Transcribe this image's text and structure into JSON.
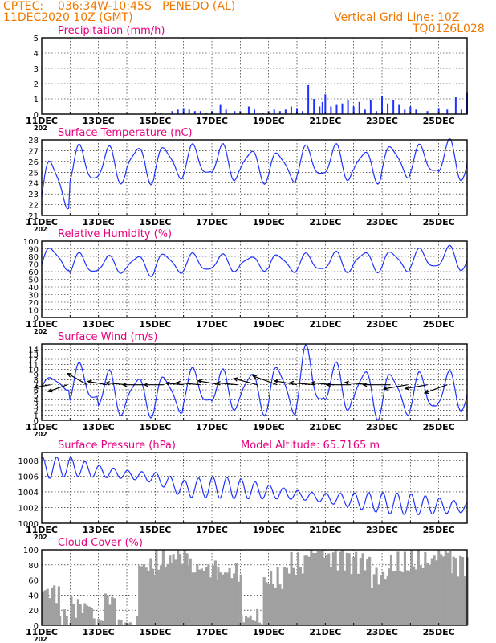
{
  "header": {
    "line1": "CPTEC:    036:34W-10:45S   PENEDO (AL)",
    "line2": "11DEC2020 10Z (GMT)",
    "right1": "Vertical Grid Line: 10Z",
    "right2": "TQ0126L028",
    "trunc_year": "202"
  },
  "x_ticks": [
    "11DEC",
    "13DEC",
    "15DEC",
    "17DEC",
    "19DEC",
    "21DEC",
    "23DEC",
    "25DEC"
  ],
  "chart_data": [
    {
      "type": "bar",
      "title": "Precipitation (mm/h)",
      "ylim": [
        0,
        5
      ],
      "yticks": [
        "0",
        "1",
        "2",
        "3",
        "4",
        "5"
      ],
      "x_unit": "days after 11DEC 10Z",
      "series": [
        {
          "x": [
            4.2,
            4.6,
            4.8,
            5.0,
            5.2,
            5.4,
            5.6,
            5.8,
            6.0,
            6.3,
            6.5,
            6.8,
            7.0,
            7.3,
            7.5,
            7.8,
            8.0,
            8.2,
            8.4,
            8.6,
            8.8,
            9.0,
            9.2,
            9.4,
            9.6,
            9.8,
            9.9,
            10.0,
            10.2,
            10.4,
            10.6,
            10.8,
            11.0,
            11.2,
            11.4,
            11.6,
            11.8,
            12.0,
            12.2,
            12.4,
            12.6,
            12.8,
            13.0,
            13.2,
            13.6,
            14.0,
            14.3,
            14.6,
            14.8,
            15.0
          ],
          "values": [
            0.1,
            0.2,
            0.3,
            0.4,
            0.3,
            0.2,
            0.2,
            0.1,
            0.2,
            0.6,
            0.3,
            0.2,
            0.2,
            0.5,
            0.3,
            0.1,
            0.2,
            0.3,
            0.2,
            0.3,
            0.5,
            0.4,
            0.2,
            1.9,
            1.0,
            0.5,
            0.8,
            1.3,
            0.5,
            0.6,
            0.7,
            0.9,
            0.5,
            0.8,
            0.3,
            0.9,
            0.2,
            1.2,
            0.7,
            0.9,
            0.6,
            0.3,
            0.5,
            0.3,
            0.2,
            0.4,
            0.3,
            1.1,
            0.3,
            1.4
          ]
        }
      ]
    },
    {
      "type": "line",
      "title": "Surface Temperature (nC)",
      "ylim": [
        21,
        28
      ],
      "yticks": [
        "21",
        "22",
        "23",
        "24",
        "25",
        "26",
        "27",
        "28"
      ],
      "base": 25.4,
      "amp": 1.5,
      "mid": 24.4,
      "peaks": [
        26.2,
        27.2,
        27.1,
        27.4,
        27.4,
        27.3,
        27.3,
        27.1,
        26.9,
        27.2,
        27.3,
        27.0,
        27.5,
        27.3,
        27.7,
        27.6
      ],
      "troughs": [
        21.8,
        24.0,
        24.1,
        24.3,
        24.5,
        24.6,
        24.4,
        24.3,
        24.2,
        24.5,
        24.4,
        24.3,
        24.6,
        24.8,
        24.4,
        24.9
      ]
    },
    {
      "type": "line",
      "title": "Relative Humidity (%)",
      "ylim": [
        0,
        100
      ],
      "yticks": [
        "0",
        "10",
        "20",
        "30",
        "40",
        "50",
        "60",
        "70",
        "80",
        "90",
        "100"
      ],
      "peaks": [
        92,
        82,
        79,
        81,
        84,
        82,
        81,
        80,
        83,
        82,
        84,
        86,
        87,
        88,
        91,
        90
      ],
      "troughs": [
        63,
        57,
        59,
        57,
        59,
        60,
        61,
        63,
        60,
        61,
        60,
        62,
        61,
        64,
        63,
        66
      ]
    },
    {
      "type": "line",
      "title": "Surface Wind (m/s)",
      "ylim": [
        0,
        15
      ],
      "yticks": [
        "0",
        "1",
        "2",
        "3",
        "4",
        "5",
        "6",
        "7",
        "8",
        "9",
        "10",
        "11",
        "12",
        "13",
        "14"
      ],
      "peaks": [
        8.5,
        10.5,
        9.0,
        8.5,
        8.8,
        9.6,
        9.3,
        9.5,
        10.8,
        13.5,
        10.5,
        10.0,
        9.4,
        8.7,
        9.0,
        8.3
      ],
      "troughs": [
        6.0,
        3.5,
        1.4,
        1.5,
        1.7,
        3.0,
        2.4,
        2.0,
        1.6,
        2.6,
        2.4,
        1.3,
        1.4,
        1.8,
        2.2,
        3.5
      ],
      "arrows_x": [
        0.3,
        0.9,
        1.6,
        2.3,
        3.0,
        3.6,
        4.3,
        5.0,
        5.6,
        6.3,
        6.9,
        7.6,
        8.3,
        9.0,
        9.6,
        10.3,
        10.9,
        11.6,
        12.3,
        12.9,
        13.6,
        14.3
      ],
      "arrows_dir": [
        190,
        200,
        150,
        170,
        175,
        180,
        180,
        175,
        175,
        170,
        175,
        165,
        160,
        170,
        175,
        175,
        180,
        175,
        180,
        190,
        190,
        200
      ],
      "arrows_len": [
        20,
        25,
        28,
        24,
        26,
        26,
        24,
        22,
        30,
        28,
        26,
        30,
        32,
        28,
        30,
        28,
        30,
        32,
        34,
        30,
        28,
        30
      ]
    },
    {
      "type": "line",
      "title": "Surface Pressure (hPa)",
      "subtitle": "Model Altitude: 65.7165 m",
      "ylim": [
        1000,
        1009
      ],
      "yticks": [
        "1000",
        "1002",
        "1004",
        "1006",
        "1008"
      ],
      "trend": [
        1007.0,
        1007.2,
        1006.6,
        1006.2,
        1005.8,
        1004.4,
        1004.6,
        1004.4,
        1004.0,
        1003.6,
        1003.2,
        1002.9,
        1002.6,
        1002.4,
        1002.2,
        1002.0
      ],
      "amp": 1.4
    },
    {
      "type": "bar",
      "title": "Cloud Cover (%)",
      "ylim": [
        0,
        100
      ],
      "yticks": [
        "0",
        "20",
        "40",
        "60",
        "80",
        "100"
      ],
      "blocks": [
        [
          0.0,
          0.6,
          45
        ],
        [
          0.6,
          1.0,
          10
        ],
        [
          1.0,
          1.8,
          25
        ],
        [
          1.8,
          2.2,
          5
        ],
        [
          2.2,
          2.6,
          35
        ],
        [
          2.6,
          3.4,
          2
        ],
        [
          3.4,
          4.0,
          78
        ],
        [
          4.0,
          4.6,
          85
        ],
        [
          4.6,
          5.2,
          95
        ],
        [
          5.2,
          6.1,
          75
        ],
        [
          6.1,
          7.0,
          70
        ],
        [
          7.0,
          7.8,
          10
        ],
        [
          7.8,
          8.6,
          60
        ],
        [
          8.6,
          9.3,
          80
        ],
        [
          9.3,
          10.0,
          98
        ],
        [
          10.0,
          10.8,
          90
        ],
        [
          10.8,
          11.6,
          85
        ],
        [
          11.6,
          12.2,
          65
        ],
        [
          12.2,
          13.0,
          80
        ],
        [
          13.0,
          13.8,
          85
        ],
        [
          13.8,
          14.4,
          96
        ],
        [
          14.4,
          15.0,
          82
        ]
      ]
    }
  ]
}
